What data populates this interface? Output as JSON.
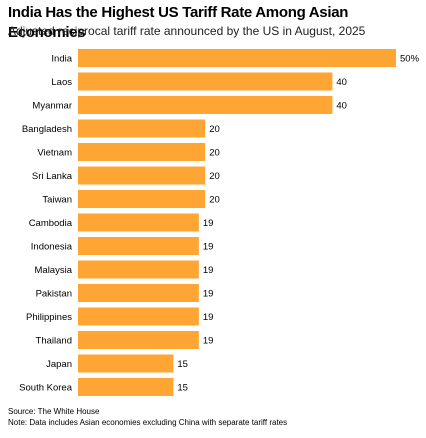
{
  "header": {
    "title": "India Has the Highest US Tariff Rate Among Asian Economies",
    "subtitle": "Adjusted reciprocal tariff rate announced by the US in August, 2025"
  },
  "footer": {
    "source": "Source: The White House",
    "note": "Note: Data includes Asian economies excluding China with separate tariff rates"
  },
  "colors": {
    "bar": "#ffa533",
    "text": "#000000",
    "background": "#ffffff"
  },
  "chart_data": {
    "type": "bar",
    "orientation": "horizontal",
    "title": "India Has the Highest US Tariff Rate Among Asian Economies",
    "subtitle": "Adjusted reciprocal tariff rate announced by the US in August, 2025",
    "categories": [
      "India",
      "Laos",
      "Myanmar",
      "Bangladesh",
      "Vietnam",
      "Sri Lanka",
      "Taiwan",
      "Cambodia",
      "Indonesia",
      "Malaysia",
      "Pakistan",
      "Philippines",
      "Thailand",
      "Japan",
      "South Korea"
    ],
    "values": [
      50,
      40,
      40,
      20,
      20,
      20,
      20,
      19,
      19,
      19,
      19,
      19,
      19,
      15,
      15
    ],
    "value_labels": [
      "50%",
      "40",
      "40",
      "20",
      "20",
      "20",
      "20",
      "19",
      "19",
      "19",
      "19",
      "19",
      "19",
      "15",
      "15"
    ],
    "xlabel": "",
    "ylabel": "",
    "xlim": [
      0,
      50
    ],
    "grid": false,
    "legend": "none"
  }
}
